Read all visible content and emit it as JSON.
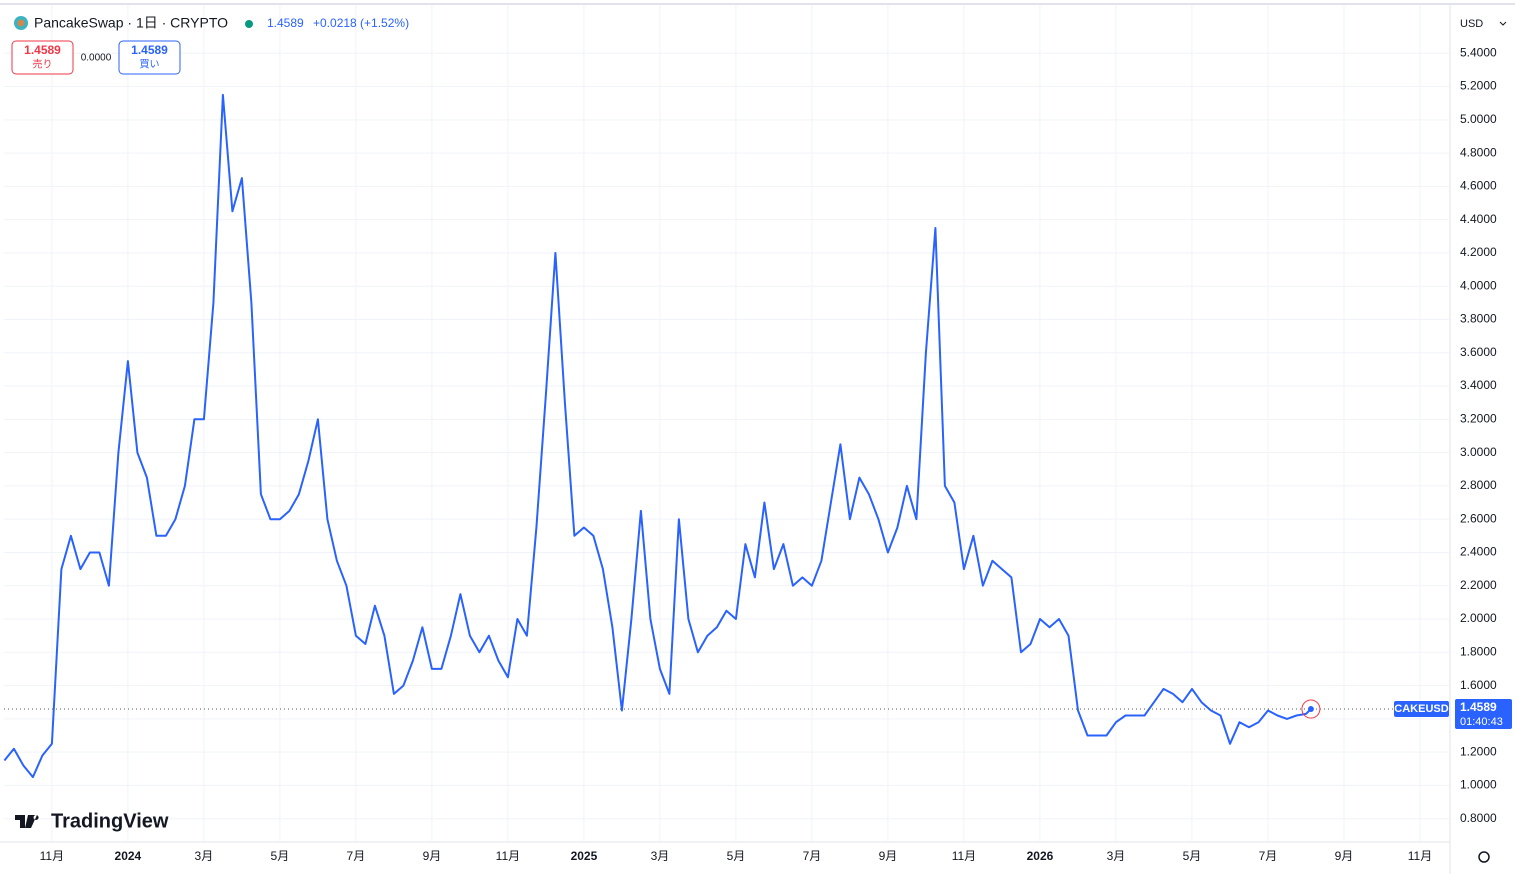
{
  "chart_data": {
    "type": "line",
    "title": "PancakeSwap · 1日 · CRYPTO",
    "x": [
      -0.25,
      0,
      0.25,
      0.5,
      0.75,
      1,
      1.25,
      1.5,
      1.75,
      2,
      2.25,
      2.5,
      2.75,
      3,
      3.25,
      3.5,
      3.75,
      4,
      4.25,
      4.5,
      4.75,
      5,
      5.25,
      5.5,
      5.75,
      6,
      6.25,
      6.5,
      6.75,
      7,
      7.25,
      7.5,
      7.75,
      8,
      8.25,
      8.5,
      8.75,
      9,
      9.25,
      9.5,
      9.75,
      10,
      10.25,
      10.5,
      10.75,
      11,
      11.25,
      11.5,
      11.75,
      12,
      12.25,
      12.5,
      12.75,
      13,
      13.25,
      13.5,
      13.75,
      14,
      14.25,
      14.5,
      14.75,
      15,
      15.25,
      15.5,
      15.75,
      16,
      16.25,
      16.5,
      16.75,
      17,
      17.25,
      17.5,
      17.75,
      18,
      18.25,
      18.5,
      18.75,
      19,
      19.25,
      19.5,
      19.75,
      20,
      20.25,
      20.5,
      20.75,
      21,
      21.25,
      21.5,
      21.75,
      22,
      22.25,
      22.5,
      22.75,
      23,
      23.25,
      23.5,
      23.75,
      24,
      24.25,
      24.5,
      24.75,
      25,
      25.25,
      25.5,
      25.75,
      26,
      26.25,
      26.5,
      26.75,
      27,
      27.25,
      27.5,
      27.75,
      28,
      28.25,
      28.5,
      28.75,
      29,
      29.25,
      29.5,
      29.75,
      30,
      30.25,
      30.5,
      30.75,
      31,
      31.25,
      31.5,
      31.75,
      32,
      32.25,
      32.5,
      32.75,
      33,
      33.25,
      33.5,
      33.75,
      34,
      34.13
    ],
    "series": [
      {
        "name": "CAKEUSD",
        "color": "#2962ff",
        "values": [
          1.15,
          1.22,
          1.12,
          1.05,
          1.18,
          1.25,
          2.3,
          2.5,
          2.3,
          2.4,
          2.4,
          2.2,
          3.0,
          3.55,
          3.0,
          2.85,
          2.5,
          2.5,
          2.6,
          2.8,
          3.2,
          3.2,
          3.9,
          5.15,
          4.45,
          4.65,
          3.9,
          2.75,
          2.6,
          2.6,
          2.65,
          2.75,
          2.95,
          3.2,
          2.6,
          2.35,
          2.2,
          1.9,
          1.85,
          2.08,
          1.9,
          1.55,
          1.6,
          1.75,
          1.95,
          1.7,
          1.7,
          1.9,
          2.15,
          1.9,
          1.8,
          1.9,
          1.75,
          1.65,
          2.0,
          1.9,
          2.55,
          3.35,
          4.2,
          3.3,
          2.5,
          2.55,
          2.5,
          2.3,
          1.95,
          1.45,
          2.0,
          2.65,
          2.0,
          1.7,
          1.55,
          2.6,
          2.0,
          1.8,
          1.9,
          1.95,
          2.05,
          2.0,
          2.45,
          2.25,
          2.7,
          2.3,
          2.45,
          2.2,
          2.25,
          2.2,
          2.35,
          2.7,
          3.05,
          2.6,
          2.85,
          2.75,
          2.6,
          2.4,
          2.55,
          2.8,
          2.6,
          3.6,
          4.35,
          2.8,
          2.7,
          2.3,
          2.5,
          2.2,
          2.35,
          2.3,
          2.25,
          1.8,
          1.85,
          2.0,
          1.95,
          2.0,
          1.9,
          1.45,
          1.3,
          1.3,
          1.3,
          1.38,
          1.42,
          1.42,
          1.42,
          1.5,
          1.58,
          1.55,
          1.5,
          1.58,
          1.5,
          1.45,
          1.42,
          1.25,
          1.38,
          1.35,
          1.38,
          1.45,
          1.42,
          1.4,
          1.42,
          1.43,
          1.4589
        ]
      }
    ],
    "xlim": [
      -0.26,
      37.79
    ],
    "xticks": [
      {
        "value": 1,
        "label": "11月"
      },
      {
        "value": 3,
        "label": "2024"
      },
      {
        "value": 5,
        "label": "3月"
      },
      {
        "value": 7,
        "label": "5月"
      },
      {
        "value": 9,
        "label": "7月"
      },
      {
        "value": 11,
        "label": "9月"
      },
      {
        "value": 13,
        "label": "11月"
      },
      {
        "value": 15,
        "label": "2025"
      },
      {
        "value": 17,
        "label": "3月"
      },
      {
        "value": 19,
        "label": "5月"
      },
      {
        "value": 21,
        "label": "7月"
      },
      {
        "value": 23,
        "label": "9月"
      },
      {
        "value": 25,
        "label": "11月"
      },
      {
        "value": 27,
        "label": "2026"
      },
      {
        "value": 29,
        "label": "3月"
      },
      {
        "value": 31,
        "label": "5月"
      },
      {
        "value": 33,
        "label": "7月"
      },
      {
        "value": 35,
        "label": "9月"
      },
      {
        "value": 37,
        "label": "11月"
      }
    ],
    "ylim": [
      0.66,
      5.69
    ],
    "yticks": [
      {
        "value": 0.8,
        "label": "0.8000"
      },
      {
        "value": 1,
        "label": "1.0000"
      },
      {
        "value": 1.2,
        "label": "1.2000"
      },
      {
        "value": 1.4,
        "label": "1.4000"
      },
      {
        "value": 1.6,
        "label": "1.6000"
      },
      {
        "value": 1.8,
        "label": "1.8000"
      },
      {
        "value": 2,
        "label": "2.0000"
      },
      {
        "value": 2.2,
        "label": "2.2000"
      },
      {
        "value": 2.4,
        "label": "2.4000"
      },
      {
        "value": 2.6,
        "label": "2.6000"
      },
      {
        "value": 2.8,
        "label": "2.8000"
      },
      {
        "value": 3,
        "label": "3.0000"
      },
      {
        "value": 3.2,
        "label": "3.2000"
      },
      {
        "value": 3.4,
        "label": "3.4000"
      },
      {
        "value": 3.6,
        "label": "3.6000"
      },
      {
        "value": 3.8,
        "label": "3.8000"
      },
      {
        "value": 4,
        "label": "4.0000"
      },
      {
        "value": 4.2,
        "label": "4.2000"
      },
      {
        "value": 4.4,
        "label": "4.4000"
      },
      {
        "value": 4.6,
        "label": "4.6000"
      },
      {
        "value": 4.8,
        "label": "4.8000"
      },
      {
        "value": 5,
        "label": "5.0000"
      },
      {
        "value": 5.2,
        "label": "5.2000"
      },
      {
        "value": 5.4,
        "label": "5.4000"
      }
    ],
    "grid": true
  },
  "quote": {
    "last": 1.4589,
    "change": "+0.0218 (+1.52%)",
    "sell": {
      "price": 1.4589,
      "label": "売り"
    },
    "spread": "0.0000",
    "buy": {
      "price": 1.4589,
      "label": "買い"
    },
    "currency": "USD",
    "countdown": "01:40:43"
  },
  "brand": "TradingView"
}
